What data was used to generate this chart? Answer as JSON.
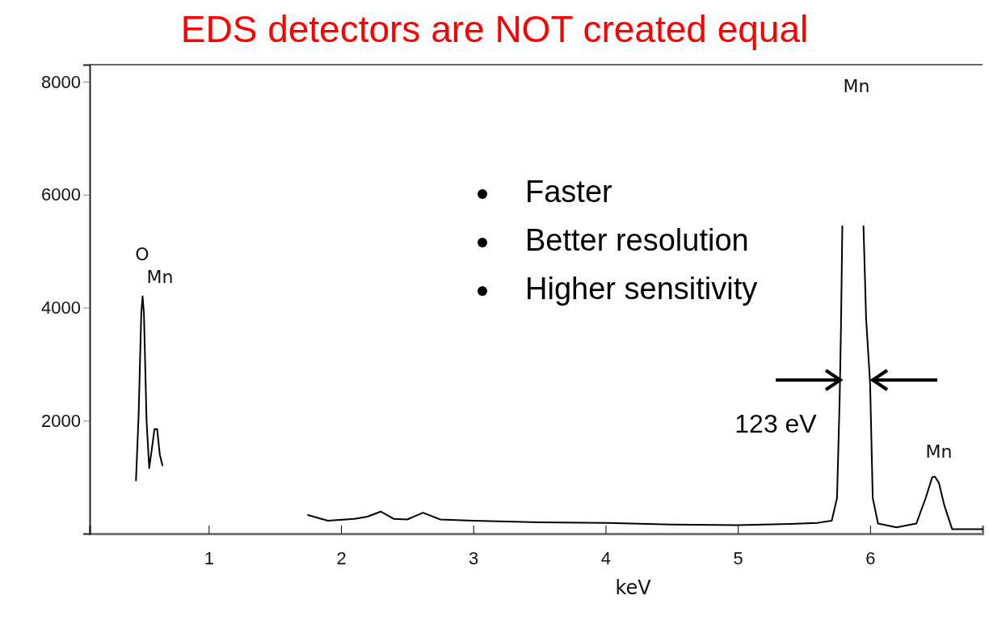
{
  "chart_data": {
    "type": "line",
    "title": "EDS detectors are NOT created equal",
    "xlabel": "keV",
    "xlim": [
      0.1,
      6.85
    ],
    "xticks": [
      1,
      2,
      3,
      4,
      5,
      6
    ],
    "ylim": [
      0,
      8300
    ],
    "yticks": [
      2000,
      4000,
      6000,
      8000
    ],
    "grid": false,
    "marker": "none",
    "line_style": "solid",
    "series": [
      {
        "color": "#000000",
        "x": [
          0.45,
          0.47,
          0.49,
          0.5,
          0.51,
          0.53,
          0.55,
          0.57,
          0.59,
          0.61,
          0.63,
          0.65,
          0.8,
          1.75,
          1.9,
          2.1,
          2.2,
          2.3,
          2.4,
          2.5,
          2.62,
          2.75,
          3.0,
          3.5,
          4.0,
          4.5,
          5.0,
          5.4,
          5.6,
          5.71,
          5.75,
          5.77,
          5.78,
          5.79,
          5.87,
          5.95,
          5.97,
          6.0,
          6.02,
          6.06,
          6.2,
          6.35,
          6.42,
          6.47,
          6.49,
          6.52,
          6.56,
          6.62,
          6.85
        ],
        "values": [
          940,
          2100,
          3900,
          4200,
          3900,
          2000,
          1160,
          1500,
          1850,
          1850,
          1400,
          1210,
          null,
          330,
          230,
          260,
          300,
          390,
          260,
          250,
          370,
          250,
          230,
          200,
          190,
          160,
          150,
          170,
          190,
          230,
          630,
          2400,
          3670,
          5440,
          null,
          5440,
          3800,
          2660,
          630,
          180,
          110,
          180,
          630,
          1000,
          1010,
          900,
          510,
          80,
          80
        ]
      }
    ],
    "annotations": [
      "O",
      "Mn",
      "Mn",
      "Mn",
      "123 eV",
      "Faster",
      "Better resolution",
      "Higher sensitivity"
    ]
  }
}
